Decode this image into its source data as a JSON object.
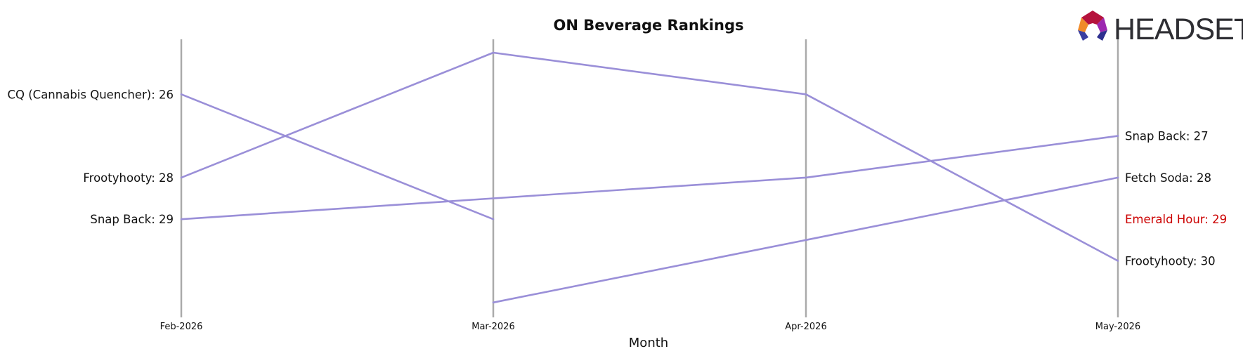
{
  "chart_data": {
    "type": "line",
    "title": "ON Beverage Rankings",
    "xlabel": "Month",
    "ylabel": "",
    "categories": [
      "Feb-2026",
      "Mar-2026",
      "Apr-2026",
      "May-2026"
    ],
    "y_inverted": true,
    "ylim": [
      33,
      24
    ],
    "grid": false,
    "series": [
      {
        "name": "CQ (Cannabis Quencher)",
        "values": [
          26,
          29,
          null,
          null
        ]
      },
      {
        "name": "Frootyhooty",
        "values": [
          28,
          25,
          26,
          30
        ]
      },
      {
        "name": "Snap Back",
        "values": [
          29,
          28.5,
          28,
          27
        ]
      },
      {
        "name": "Fetch Soda",
        "values": [
          null,
          31,
          29.5,
          28
        ]
      }
    ],
    "left_labels": [
      {
        "text": "CQ (Cannabis Quencher): 26",
        "rank": 26,
        "highlight": false
      },
      {
        "text": "Frootyhooty: 28",
        "rank": 28,
        "highlight": false
      },
      {
        "text": "Snap Back: 29",
        "rank": 29,
        "highlight": false
      }
    ],
    "right_labels": [
      {
        "text": "Snap Back: 27",
        "rank": 27,
        "highlight": false
      },
      {
        "text": "Fetch Soda: 28",
        "rank": 28,
        "highlight": false
      },
      {
        "text": "Emerald Hour: 29",
        "rank": 29,
        "highlight": true
      },
      {
        "text": "Frootyhooty: 30",
        "rank": 30,
        "highlight": false
      }
    ],
    "colors": {
      "line": "#9a8fd8",
      "axis": "#aaaaaa",
      "label": "#111111",
      "highlight": "#cc0000"
    }
  },
  "logo": {
    "text": "HEADSET"
  }
}
